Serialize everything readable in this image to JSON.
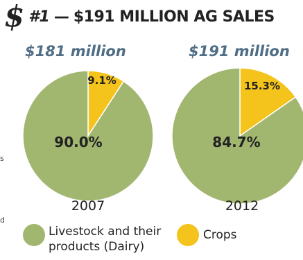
{
  "header": {
    "symbol": "$",
    "rank": "#1",
    "dash": "—",
    "title": "$191 MILLION AG SALES"
  },
  "edge_fragments": [
    "s",
    "d"
  ],
  "colors": {
    "title": "#222222",
    "accent_blue": "#4f6e86",
    "livestock": "#a1b770",
    "crops": "#f4c31c"
  },
  "chart_data": [
    {
      "type": "pie",
      "total_label": "$181 million",
      "year": "2007",
      "slices": [
        {
          "name": "Crops",
          "value": 9.1,
          "label": "9.1%"
        },
        {
          "name": "Livestock and their products (Dairy)",
          "value": 90.0,
          "label": "90.0%"
        }
      ]
    },
    {
      "type": "pie",
      "total_label": "$191 million",
      "year": "2012",
      "slices": [
        {
          "name": "Crops",
          "value": 15.3,
          "label": "15.3%"
        },
        {
          "name": "Livestock and their products (Dairy)",
          "value": 84.7,
          "label": "84.7%"
        }
      ]
    }
  ],
  "legend": [
    {
      "label": "Livestock and their products (Dairy)",
      "color": "#a1b770",
      "icon": "green-circle"
    },
    {
      "label": "Crops",
      "color": "#f4c31c",
      "icon": "yellow-circle"
    }
  ]
}
